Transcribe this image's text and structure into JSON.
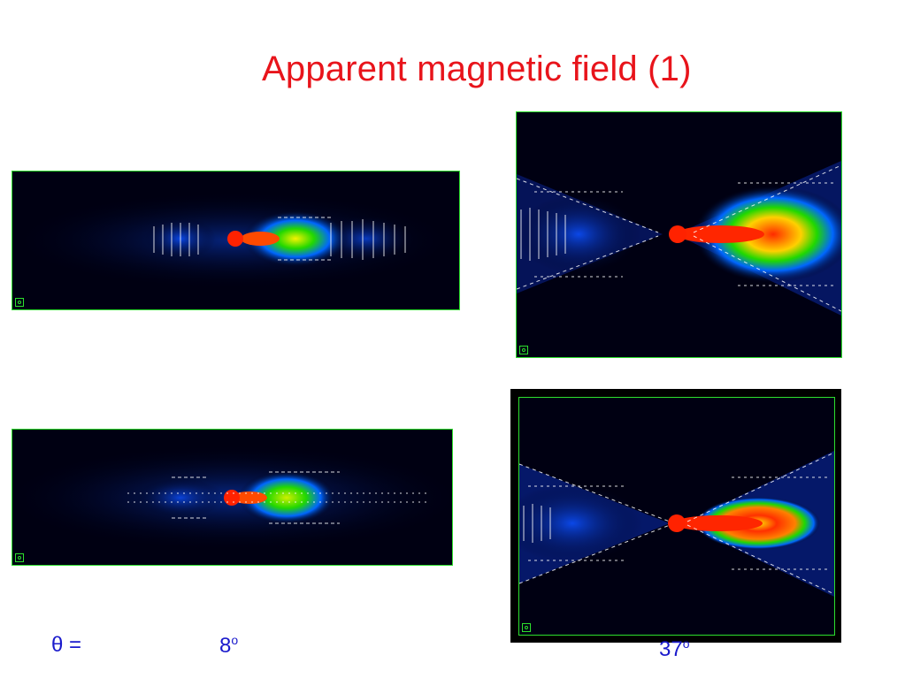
{
  "title": "Apparent magnetic field (1)",
  "labels": {
    "theta": "θ =",
    "angle1": "8",
    "angle2": "37",
    "degree": "o"
  },
  "colors": {
    "title": "#e8141b",
    "labels": "#1a1acc",
    "frame": "#2de02d",
    "background": "#000010"
  }
}
